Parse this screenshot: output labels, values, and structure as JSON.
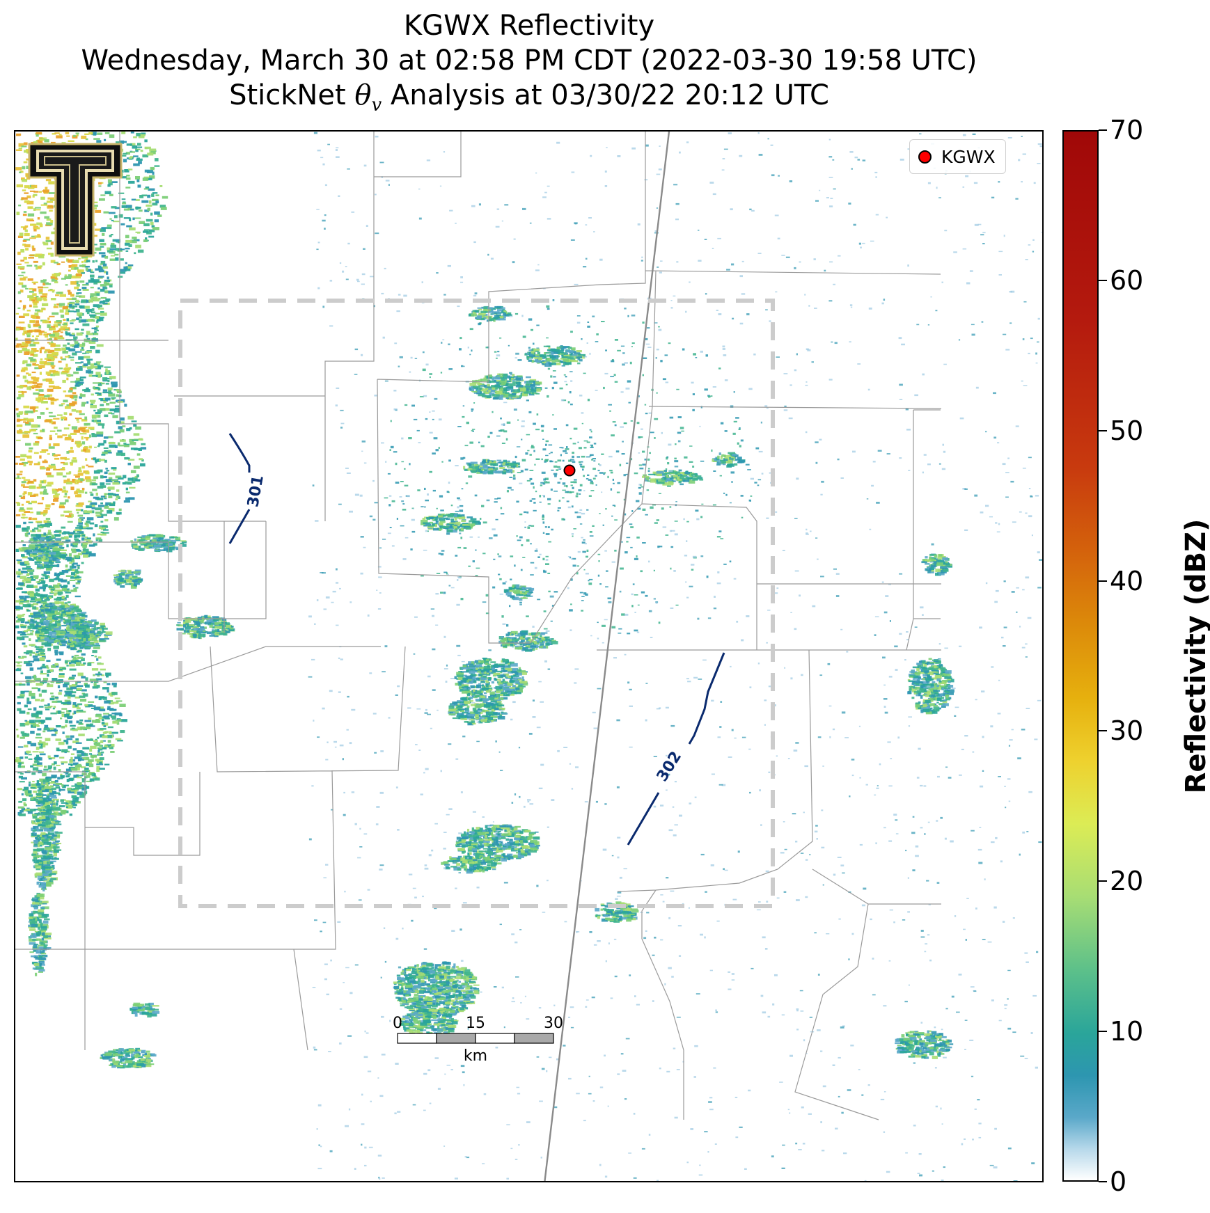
{
  "title": {
    "line1": "KGWX Reflectivity",
    "line2": "Wednesday, March 30 at 02:58 PM CDT (2022-03-30 19:58 UTC)",
    "line3": "StickNet θv Analysis at 03/30/22 20:12 UTC"
  },
  "legend": {
    "label": "KGWX",
    "marker_color": "#ff0000"
  },
  "contours": [
    {
      "label": "301",
      "color": "#0a2a6e"
    },
    {
      "label": "302",
      "color": "#0a2a6e"
    }
  ],
  "scale_bar": {
    "ticks": [
      "0",
      "15",
      "30"
    ],
    "unit": "km"
  },
  "colorbar": {
    "label": "Reflectivity (dBZ)",
    "ticks": [
      "0",
      "10",
      "20",
      "30",
      "40",
      "50",
      "60",
      "70"
    ],
    "range": [
      0,
      70
    ]
  },
  "logo": {
    "name": "Texas Tech Double T"
  }
}
